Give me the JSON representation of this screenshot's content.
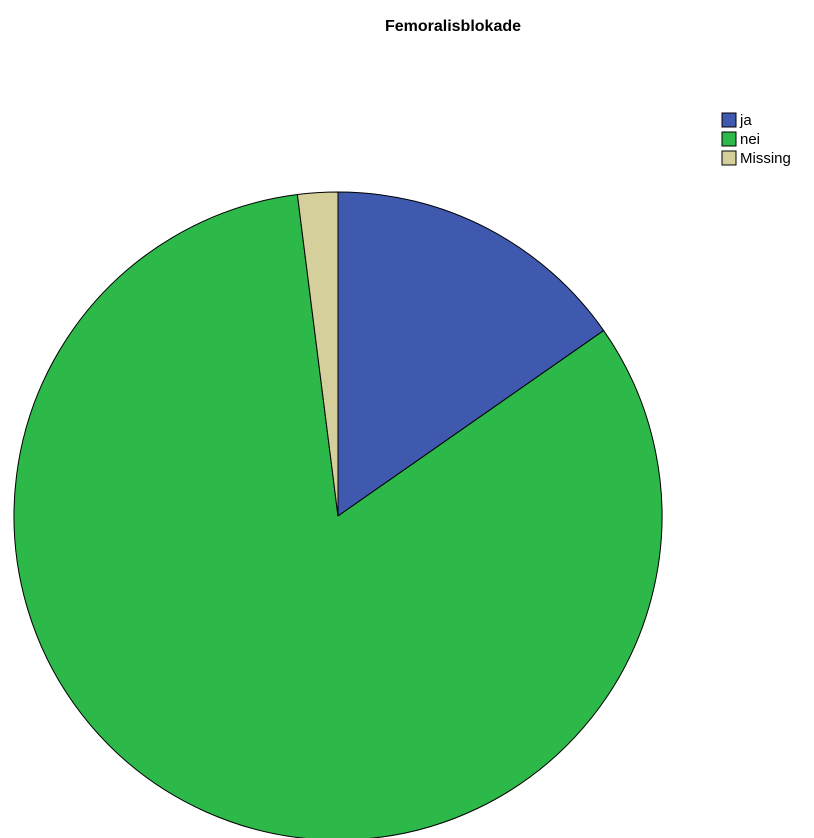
{
  "chart_data": {
    "type": "pie",
    "title": "Femoralisblokade",
    "start_angle_deg": 0,
    "direction": "clockwise",
    "slices": [
      {
        "label": "ja",
        "value": 15.3,
        "color": "#3f59ae"
      },
      {
        "label": "nei",
        "value": 82.7,
        "color": "#2db84a"
      },
      {
        "label": "Missing",
        "value": 2.0,
        "color": "#d4cf9b"
      }
    ],
    "legend_position": "top-right",
    "grid": false
  }
}
